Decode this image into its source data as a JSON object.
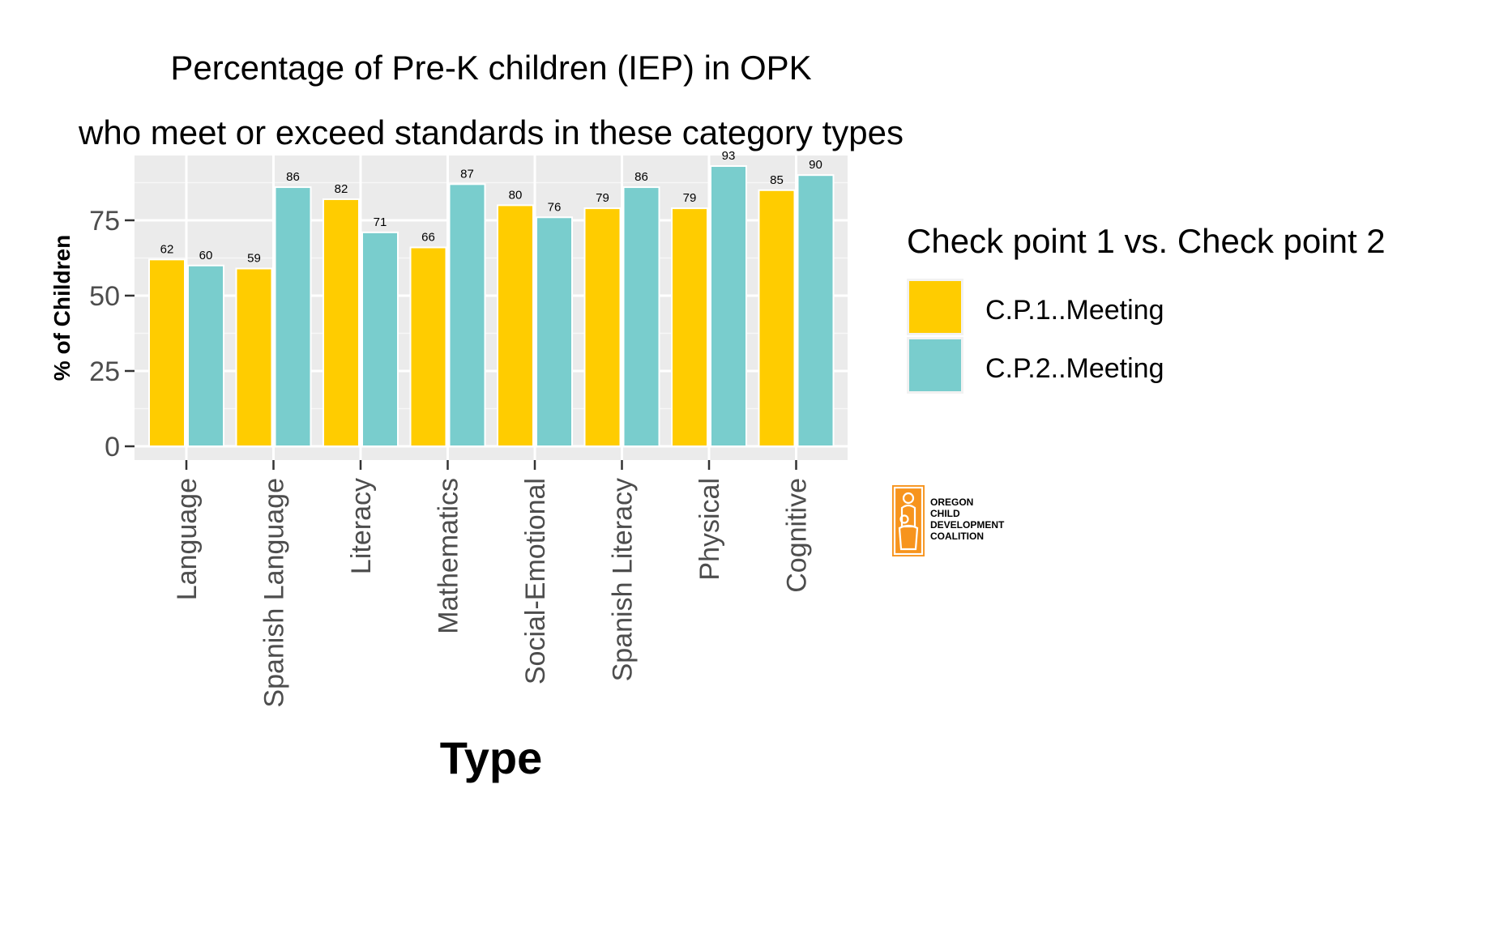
{
  "chart_data": {
    "type": "bar",
    "title": "Percentage of Pre-K children (IEP) in OPK",
    "subtitle": "who meet or exceed standards in these category types",
    "xlabel": "Type",
    "ylabel": "% of Children",
    "ylim": [
      0,
      96.5
    ],
    "yticks": [
      0,
      25,
      50,
      75
    ],
    "categories": [
      "Language",
      "Spanish Language",
      "Literacy",
      "Mathematics",
      "Social-Emotional",
      "Spanish Literacy",
      "Physical",
      "Cognitive"
    ],
    "series": [
      {
        "name": "C.P.1..Meeting",
        "color": "#FFCC00",
        "values": [
          62,
          59,
          82,
          66,
          80,
          79,
          79,
          85
        ]
      },
      {
        "name": "C.P.2..Meeting",
        "color": "#79CDCD",
        "values": [
          60,
          86,
          71,
          87,
          76,
          86,
          93,
          90
        ]
      }
    ],
    "grid": true,
    "panel_background": "#EBEBEB",
    "legend": {
      "title": "Check point 1 vs. Check point 2",
      "position": "right"
    }
  },
  "logo": {
    "text_lines": [
      "OREGON",
      "CHILD",
      "DEVELOPMENT",
      "COALITION"
    ],
    "color": "#F7941D"
  }
}
